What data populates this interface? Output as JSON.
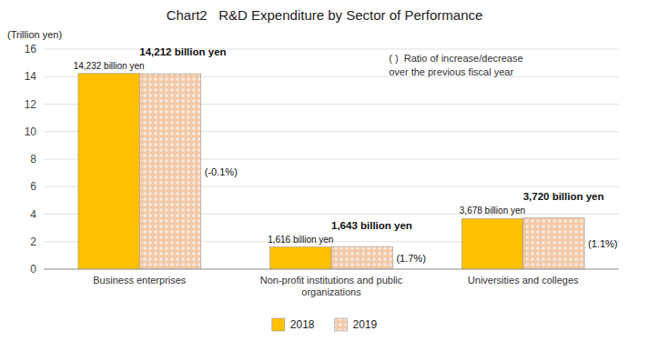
{
  "chart_data": {
    "type": "bar",
    "title": "Chart2   R&D Expenditure by Sector of Performance",
    "y_label": "(Trillion yen)",
    "categories": [
      "Business enterprises",
      "Non-profit institutions and public\norganizations",
      "Universities and colleges"
    ],
    "series": [
      {
        "name": "2018",
        "color": "#FFC000",
        "values": [
          14.232,
          1.616,
          3.678
        ],
        "value_labels": [
          "14,232 billion yen",
          "1,616 billion yen",
          "3,678 billion yen"
        ]
      },
      {
        "name": "2019",
        "color": "#F2C9A8",
        "values": [
          14.212,
          1.643,
          3.72
        ],
        "value_labels": [
          "14,212 billion yen",
          "1,643 billion yen",
          "3,720 billion yen"
        ],
        "ratio_labels": [
          "(-0.1%)",
          "(1.7%)",
          "(1.1%)"
        ]
      }
    ],
    "annotations": [
      "( )  Ratio of increase/decrease",
      "over the previous fiscal year"
    ],
    "ylim": [
      0,
      16
    ],
    "yticks": [
      0,
      2,
      4,
      6,
      8,
      10,
      12,
      14,
      16
    ],
    "grid": true,
    "legend": "bottom",
    "data_labels": true
  }
}
